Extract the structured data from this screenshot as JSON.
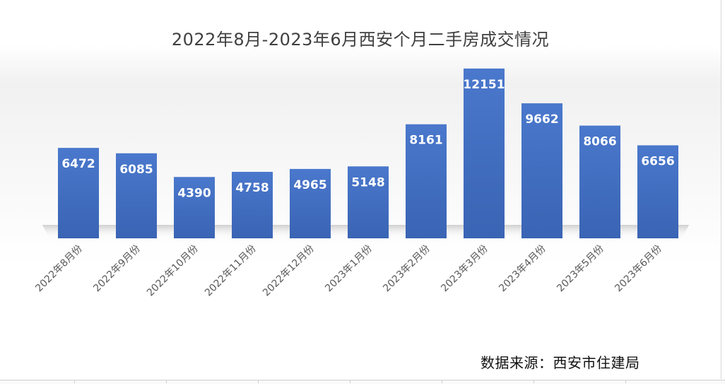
{
  "chart_data": {
    "type": "bar",
    "title": "2022年8月-2023年6月西安个月二手房成交情况",
    "categories": [
      "2022年8月份",
      "2022年9月份",
      "2022年10月份",
      "2022年11月份",
      "2022年12月份",
      "2023年1月份",
      "2023年2月份",
      "2023年3月份",
      "2023年4月份",
      "2023年5月份",
      "2023年6月份"
    ],
    "series": [
      {
        "values": [
          6472,
          6085,
          4390,
          4758,
          4965,
          5148,
          8161,
          12151,
          9662,
          8066,
          6656
        ]
      }
    ],
    "ylim": [
      0,
      12500
    ],
    "grid": false,
    "legend": "none",
    "data_labels": true,
    "bar_color": "#4472c4",
    "label_color": "#ffffff",
    "tick_label_rotation": -45
  },
  "source_note": "数据来源：西安市住建局"
}
